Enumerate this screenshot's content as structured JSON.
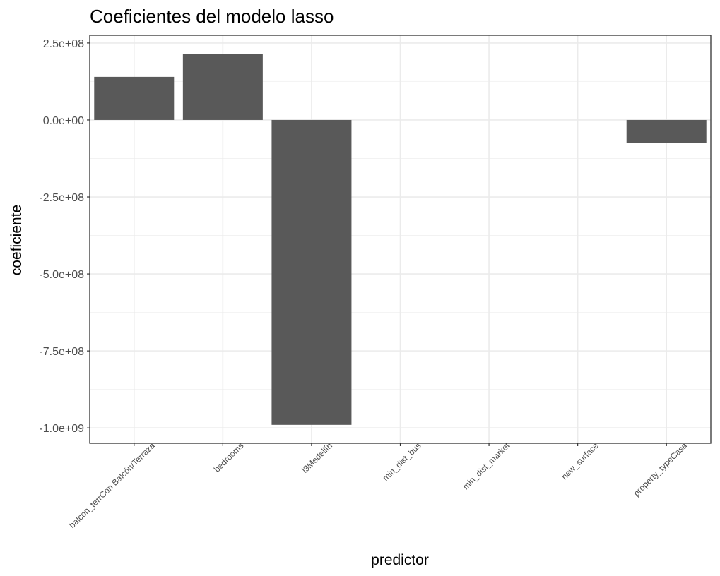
{
  "chart_data": {
    "type": "bar",
    "title": "Coeficientes del modelo lasso",
    "xlabel": "predictor",
    "ylabel": "coeficiente",
    "categories": [
      "balcon_terrCon Balcón/Terraza",
      "bedrooms",
      "l3Medellín",
      "min_dist_bus",
      "min_dist_market",
      "new_surface",
      "property_typeCasa"
    ],
    "values": [
      140000000,
      215000000,
      -990000000,
      0,
      0,
      0,
      -75000000
    ],
    "ylim": [
      -1050000000,
      275000000
    ],
    "yticks": [
      250000000,
      0,
      -250000000,
      -500000000,
      -750000000,
      -1000000000
    ],
    "ytick_labels": [
      "2.5e+08",
      "0.0e+00",
      "-2.5e+08",
      "-5.0e+08",
      "-7.5e+08",
      "-1.0e+09"
    ],
    "bar_color": "#595959",
    "grid": true,
    "theme": "bw"
  }
}
